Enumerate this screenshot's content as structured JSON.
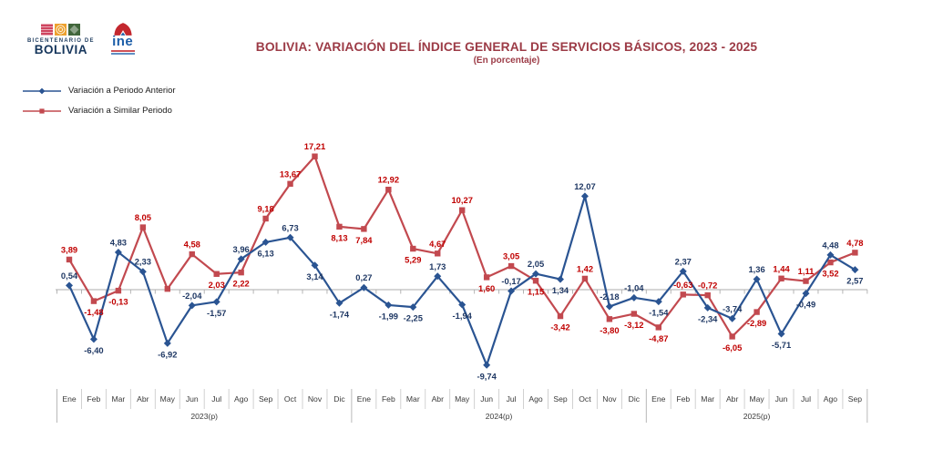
{
  "header": {
    "title": "BOLIVIA: VARIACIÓN DEL ÍNDICE GENERAL DE SERVICIOS BÁSICOS, 2023 - 2025",
    "subtitle": "(En porcentaje)",
    "title_color": "#9c3b46"
  },
  "logos": {
    "bicentenario_line1": "BICENTENARIO DE",
    "bicentenario_line2": "BOLIVIA",
    "ine_wordmark": "ine"
  },
  "legend": [
    {
      "label": "Variación a Periodo Anterior",
      "color": "#2a5492",
      "marker": "diamond"
    },
    {
      "label": "Variación a Similar Periodo",
      "color": "#c2494f",
      "marker": "square"
    }
  ],
  "chart_data": {
    "type": "line",
    "title": "BOLIVIA: VARIACIÓN DEL ÍNDICE GENERAL DE SERVICIOS BÁSICOS, 2023 - 2025",
    "subtitle": "(En porcentaje)",
    "xlabel": "",
    "ylabel": "",
    "ylim": [
      -11,
      19
    ],
    "baseline": 0,
    "grid": false,
    "legend_position": "top-left",
    "x_groups": [
      {
        "year": "2023(p)",
        "months": [
          "Ene",
          "Feb",
          "Mar",
          "Abr",
          "May",
          "Jun",
          "Jul",
          "Ago",
          "Sep",
          "Oct",
          "Nov",
          "Dic"
        ]
      },
      {
        "year": "2024(p)",
        "months": [
          "Ene",
          "Feb",
          "Mar",
          "Abr",
          "May",
          "Jun",
          "Jul",
          "Ago",
          "Sep",
          "Oct",
          "Nov",
          "Dic"
        ]
      },
      {
        "year": "2025(p)",
        "months": [
          "Ene",
          "Feb",
          "Mar",
          "Abr",
          "May",
          "Jun",
          "Jul",
          "Ago",
          "Sep"
        ]
      }
    ],
    "series": [
      {
        "name": "Variación a Periodo Anterior",
        "color": "#2a5492",
        "label_color": "#1f3864",
        "marker": "diamond",
        "values": [
          0.54,
          -6.4,
          4.83,
          2.33,
          -6.92,
          -2.04,
          -1.57,
          3.96,
          6.13,
          6.73,
          3.14,
          -1.74,
          0.27,
          -1.99,
          -2.25,
          1.73,
          -1.94,
          -9.74,
          -0.17,
          2.05,
          1.34,
          12.07,
          -2.18,
          -1.04,
          -1.54,
          2.37,
          -2.34,
          -3.74,
          1.36,
          -5.71,
          -0.49,
          4.48,
          2.57
        ],
        "labels": [
          "0,54",
          "-6,40",
          "4,83",
          "2,33",
          "-6,92",
          "-2,04",
          "-1,57",
          "3,96",
          "6,13",
          "6,73",
          "3,14",
          "-1,74",
          "0,27",
          "-1,99",
          "-2,25",
          "1,73",
          "-1,94",
          "-9,74",
          "-0,17",
          "2,05",
          "1,34",
          "12,07",
          "-2,18",
          "-1,04",
          "-1,54",
          "2,37",
          "-2,34",
          "-3,74",
          "1,36",
          "-5,71",
          "-0,49",
          "4,48",
          "2,57"
        ],
        "label_side": [
          "a",
          "b",
          "a",
          "a",
          "b",
          "a",
          "b",
          "a",
          "b",
          "a",
          "b",
          "b",
          "a",
          "b",
          "b",
          "a",
          "b",
          "b",
          "a",
          "a",
          "b",
          "a",
          "a",
          "a",
          "b",
          "a",
          "b",
          "a",
          "a",
          "b",
          "b",
          "a",
          "b"
        ]
      },
      {
        "name": "Variación a Similar Periodo",
        "color": "#c2494f",
        "label_color": "#c00000",
        "marker": "square",
        "values": [
          3.89,
          -1.48,
          -0.13,
          8.05,
          0.1,
          4.58,
          2.03,
          2.22,
          9.18,
          13.67,
          17.21,
          8.13,
          7.84,
          12.92,
          5.29,
          4.67,
          10.27,
          1.6,
          3.05,
          1.15,
          -3.42,
          1.42,
          -3.8,
          -3.12,
          -4.87,
          -0.63,
          -0.72,
          -6.05,
          -2.89,
          1.44,
          1.11,
          3.52,
          4.78
        ],
        "labels": [
          "3,89",
          "-1,48",
          "-0,13",
          "8,05",
          "",
          "4,58",
          "2,03",
          "2,22",
          "9,18",
          "13,67",
          "17,21",
          "8,13",
          "7,84",
          "12,92",
          "5,29",
          "4,67",
          "10,27",
          "1,60",
          "3,05",
          "1,15",
          "-3,42",
          "1,42",
          "-3,80",
          "-3,12",
          "-4,87",
          "-0,63",
          "-0,72",
          "-6,05",
          "-2,89",
          "1,44",
          "1,11",
          "3,52",
          "4,78"
        ],
        "label_side": [
          "a",
          "b",
          "b",
          "a",
          "n",
          "a",
          "b",
          "b",
          "a",
          "a",
          "a",
          "b",
          "b",
          "a",
          "b",
          "a",
          "a",
          "b",
          "a",
          "b",
          "b",
          "a",
          "b",
          "b",
          "b",
          "a",
          "a",
          "b",
          "b",
          "a",
          "a",
          "b",
          "a"
        ]
      }
    ]
  }
}
